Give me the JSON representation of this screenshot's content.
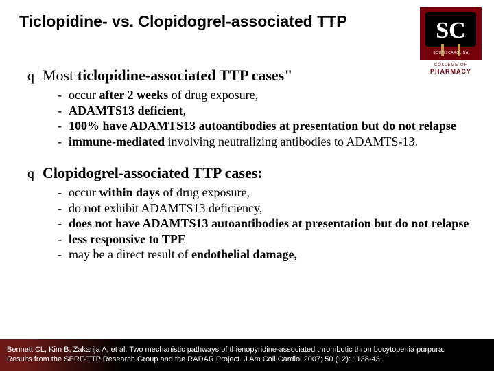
{
  "title": "Ticlopidine- vs. Clopidogrel-associated TTP",
  "logo": {
    "top_text": "SOUTH CAROLINA",
    "mid_text": "COLLEGE OF",
    "bottom_text": "PHARMACY",
    "bg_color": "#73000a",
    "inner_bg": "#000000",
    "letters": "SC",
    "letters_color": "#ffffff"
  },
  "sections": [
    {
      "bullet": "q",
      "header_prefix": "Most ",
      "header_bold": "ticlopidine-associated TTP cases\"",
      "items": [
        {
          "pre": "occur ",
          "bold": "after 2 weeks",
          "post": " of drug exposure,"
        },
        {
          "pre": "",
          "bold": "ADAMTS13 deficient",
          "post": ","
        },
        {
          "pre": "",
          "bold": "100% have ADAMTS13 autoantibodies at presentation but do not relapse",
          "post": ""
        },
        {
          "pre": "",
          "bold": "immune-mediated",
          "post": " involving neutralizing antibodies to ADAMTS-13."
        }
      ]
    },
    {
      "bullet": "q",
      "header_prefix": "",
      "header_bold": "Clopidogrel-associated TTP cases:",
      "items": [
        {
          "pre": "occur ",
          "bold": "within days",
          "post": " of drug exposure,"
        },
        {
          "pre": "do ",
          "bold": "not",
          "post": " exhibit ADAMTS13 deficiency,"
        },
        {
          "pre": "",
          "bold": "does not have ADAMTS13 autoantibodies at presentation but do not relapse",
          "post": ""
        },
        {
          "pre": "",
          "bold": "less responsive to TPE",
          "post": ""
        },
        {
          "pre": "may be a direct result of ",
          "bold": "endothelial damage,",
          "post": ""
        }
      ]
    }
  ],
  "footer": {
    "line1": "Bennett CL, Kim B, Zakarija A, et al. Two mechanistic pathways of thienopyridine-associated thrombotic thrombocytopenia purpura:",
    "line2": "Results from the SERF-TTP Research Group and the RADAR Project. J Am Coll Cardiol 2007; 50 (12): 1138-43."
  }
}
